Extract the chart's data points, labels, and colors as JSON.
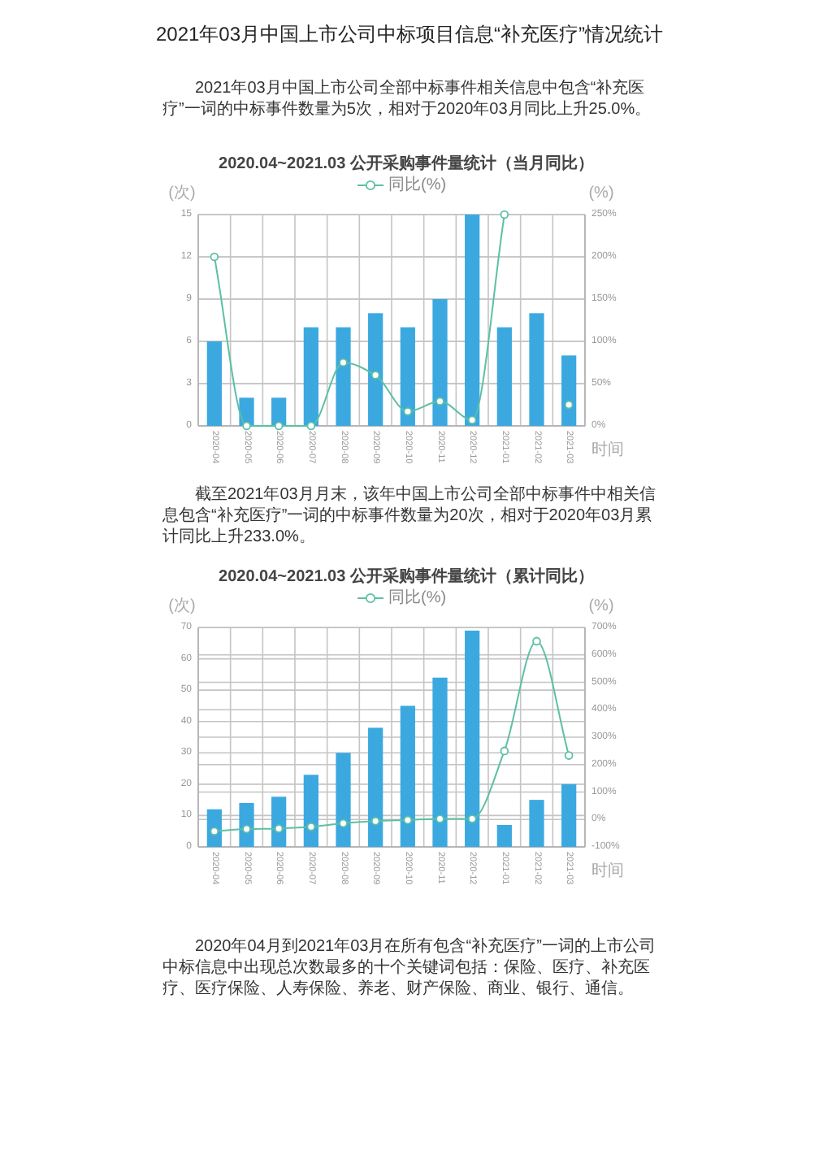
{
  "chart_data": [
    {
      "type": "bar",
      "title": "2020.04~2021.03 公开采购事件量统计（当月同比）",
      "annotations": [
        "2021年03月中国上市公司中标项目信息“补充医疗”情况统计",
        "2021年03月中国上市公司全部中标事件相关信息中包含“补充医疗”一词的中标事件数量为5次，相对于2020年03月同比上升25.0%。"
      ],
      "categories": [
        "2020-04",
        "2020-05",
        "2020-06",
        "2020-07",
        "2020-08",
        "2020-09",
        "2020-10",
        "2020-11",
        "2020-12",
        "2021-01",
        "2021-02",
        "2021-03"
      ],
      "ylabel": "(次)",
      "y2label": "(%)",
      "xlabel": "时间",
      "ylim": [
        0,
        15
      ],
      "yticks": [
        0,
        3,
        6,
        9,
        12,
        15
      ],
      "y2lim": [
        0,
        250
      ],
      "y2ticks": [
        {
          "value": 0,
          "label": "0%"
        },
        {
          "value": 50,
          "label": "50%"
        },
        {
          "value": 100,
          "label": "100%"
        },
        {
          "value": 150,
          "label": "150%"
        },
        {
          "value": 200,
          "label": "200%"
        },
        {
          "value": 250,
          "label": "250%"
        }
      ],
      "grid": true,
      "legend": "top",
      "marker": "circle",
      "series": [
        {
          "color": "#3ba9e0",
          "values": [
            6,
            2,
            2,
            7,
            7,
            8,
            7,
            9,
            15,
            7,
            8,
            5
          ]
        },
        {
          "type": "line",
          "name": "同比(%)",
          "axis": "y2",
          "color": "#5dbfa6",
          "values": [
            200,
            0,
            0,
            0,
            75,
            60,
            17,
            29,
            7,
            250,
            null,
            25
          ]
        }
      ]
    },
    {
      "type": "bar",
      "title": "2020.04~2021.03 公开采购事件量统计（累计同比）",
      "annotations": [
        "截至2021年03月月末，该年中国上市公司全部中标事件中相关信息包含“补充医疗”一词的中标事件数量为20次，相对于2020年03月累计同比上升233.0%。",
        "2020年04月到2021年03月在所有包含“补充医疗”一词的上市公司中标信息中出现总次数最多的十个关键词包括：保险、医疗、补充医疗、医疗保险、人寿保险、养老、财产保险、商业、银行、通信。"
      ],
      "categories": [
        "2020-04",
        "2020-05",
        "2020-06",
        "2020-07",
        "2020-08",
        "2020-09",
        "2020-10",
        "2020-11",
        "2020-12",
        "2021-01",
        "2021-02",
        "2021-03"
      ],
      "ylabel": "(次)",
      "y2label": "(%)",
      "xlabel": "时间",
      "ylim": [
        0,
        70
      ],
      "yticks": [
        0,
        10,
        20,
        30,
        40,
        50,
        60,
        70
      ],
      "y2lim": [
        -100,
        700
      ],
      "y2ticks": [
        {
          "value": -100,
          "label": "-100%"
        },
        {
          "value": 0,
          "label": "0%"
        },
        {
          "value": 100,
          "label": "100%"
        },
        {
          "value": 200,
          "label": "200%"
        },
        {
          "value": 300,
          "label": "300%"
        },
        {
          "value": 400,
          "label": "400%"
        },
        {
          "value": 500,
          "label": "500%"
        },
        {
          "value": 600,
          "label": "600%"
        },
        {
          "value": 700,
          "label": "700%"
        }
      ],
      "grid": true,
      "legend": "top",
      "marker": "circle",
      "series": [
        {
          "color": "#3ba9e0",
          "values": [
            12,
            14,
            16,
            23,
            30,
            38,
            45,
            54,
            69,
            7,
            15,
            20
          ]
        },
        {
          "type": "line",
          "name": "同比(%)",
          "axis": "y2",
          "color": "#5dbfa6",
          "values": [
            -43,
            -35,
            -33,
            -27,
            -14,
            -6,
            -2,
            2,
            2,
            250,
            650,
            233
          ]
        }
      ]
    }
  ]
}
